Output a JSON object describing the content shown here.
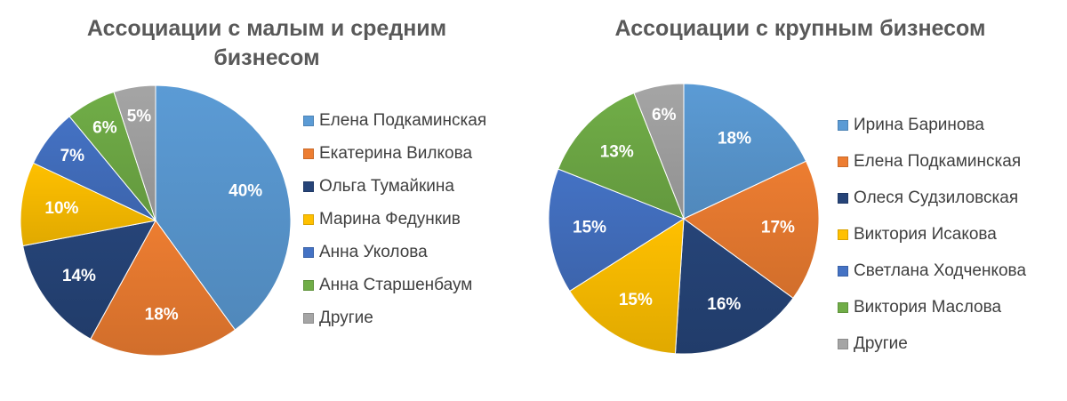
{
  "chart_data": [
    {
      "type": "pie",
      "title": "Ассоциации с малым и средним бизнесом",
      "categories": [
        "Елена Подкаминская",
        "Екатерина Вилкова",
        "Ольга Тумайкина",
        "Марина Федункив",
        "Анна Уколова",
        "Анна Старшенбаум",
        "Другие"
      ],
      "values": [
        40,
        18,
        14,
        10,
        7,
        6,
        5
      ],
      "labels": [
        "40%",
        "18%",
        "14%",
        "10%",
        "7%",
        "6%",
        "5%"
      ],
      "colors": [
        "#5B9BD5",
        "#ED7D31",
        "#264478",
        "#FFC000",
        "#4472C4",
        "#70AD47",
        "#A5A5A5"
      ],
      "legend_position": "right"
    },
    {
      "type": "pie",
      "title": "Ассоциации с крупным бизнесом",
      "categories": [
        "Ирина Баринова",
        "Елена Подкаминская",
        "Олеся Судзиловская",
        "Виктория Исакова",
        "Светлана Ходченкова",
        "Виктория Маслова",
        "Другие"
      ],
      "values": [
        18,
        17,
        16,
        15,
        15,
        13,
        6
      ],
      "labels": [
        "18%",
        "17%",
        "16%",
        "15%",
        "15%",
        "13%",
        "6%"
      ],
      "colors": [
        "#5B9BD5",
        "#ED7D31",
        "#264478",
        "#FFC000",
        "#4472C4",
        "#70AD47",
        "#A5A5A5"
      ],
      "legend_position": "right"
    }
  ]
}
